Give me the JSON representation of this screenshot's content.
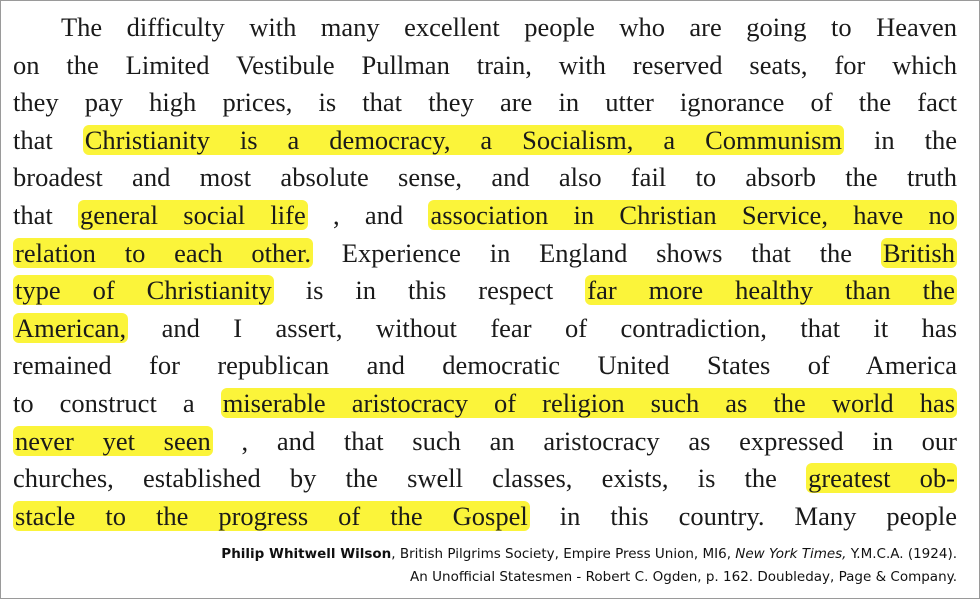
{
  "paragraph": {
    "lines": [
      [
        {
          "text": "The difficulty with many excellent people who are going to Heaven",
          "highlight": false
        }
      ],
      [
        {
          "text": "on the Limited Vestibule Pullman train, with reserved seats, for which",
          "highlight": false
        }
      ],
      [
        {
          "text": "they pay high prices, is that they are in utter ignorance of the fact",
          "highlight": false
        }
      ],
      [
        {
          "text": "that",
          "highlight": false
        },
        {
          "text": "Christianity is a democracy, a Socialism, a Communism",
          "highlight": true
        },
        {
          "text": "in the",
          "highlight": false
        }
      ],
      [
        {
          "text": "broadest and most absolute sense, and also fail to absorb the truth",
          "highlight": false
        }
      ],
      [
        {
          "text": "that",
          "highlight": false
        },
        {
          "text": "general social life",
          "highlight": true
        },
        {
          "text": ", and",
          "highlight": false
        },
        {
          "text": "association in Christian Service, have no",
          "highlight": true
        }
      ],
      [
        {
          "text": "relation to each other.",
          "highlight": true
        },
        {
          "text": "Experience in England shows that the",
          "highlight": false
        },
        {
          "text": "British",
          "highlight": true
        }
      ],
      [
        {
          "text": "type of Christianity",
          "highlight": true
        },
        {
          "text": "is in this respect",
          "highlight": false
        },
        {
          "text": "far more healthy than the",
          "highlight": true
        }
      ],
      [
        {
          "text": "American,",
          "highlight": true
        },
        {
          "text": "and I assert, without fear of contradiction, that it has",
          "highlight": false
        }
      ],
      [
        {
          "text": "remained for republican and democratic United States of America",
          "highlight": false
        }
      ],
      [
        {
          "text": "to construct a",
          "highlight": false
        },
        {
          "text": "miserable aristocracy of religion such as the world has",
          "highlight": true
        }
      ],
      [
        {
          "text": "never yet seen",
          "highlight": true
        },
        {
          "text": ", and that such an aristocracy as expressed in our",
          "highlight": false
        }
      ],
      [
        {
          "text": "churches, established by the swell classes, exists, is the",
          "highlight": false
        },
        {
          "text": "greatest ob-",
          "highlight": true
        }
      ],
      [
        {
          "text": "stacle to the progress of the Gospel",
          "highlight": true
        },
        {
          "text": "in this country.  Many people",
          "highlight": false
        }
      ]
    ]
  },
  "caption": {
    "line1": [
      "Philip Whitwell Wilson",
      ", British Pilgrims Society, Empire Press Union, MI6, ",
      "New York Times,",
      " Y.M.C.A. (1924)."
    ],
    "line2": "An Unofficial Statesmen - Robert C. Ogden, p. 162. Doubleday, Page & Company."
  }
}
